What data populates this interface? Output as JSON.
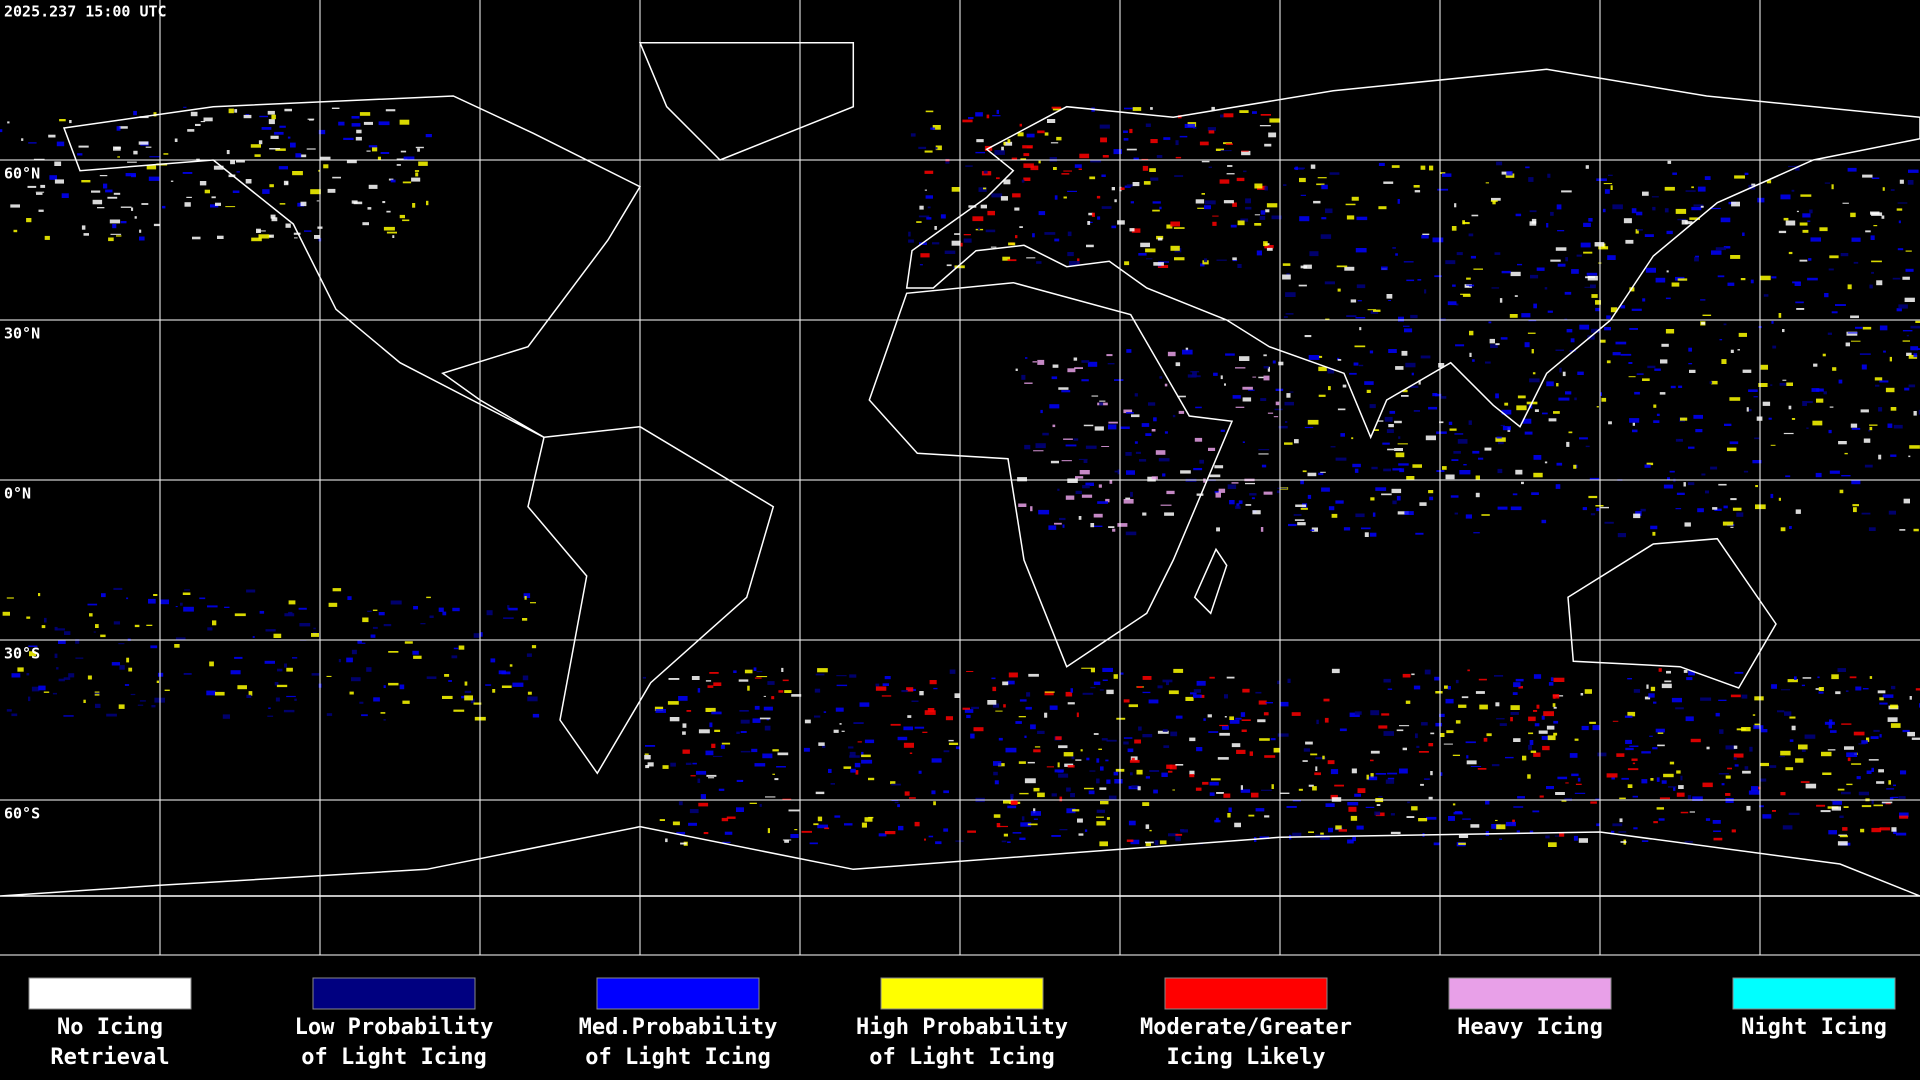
{
  "header": {
    "timestamp": "2025.237 15:00 UTC"
  },
  "latitude_labels": [
    "60°N",
    "30°N",
    "0°N",
    "30°S",
    "60°S"
  ],
  "legend": {
    "items": [
      {
        "lines": [
          "No Icing",
          "Retrieval"
        ],
        "color": "#ffffff"
      },
      {
        "lines": [
          "Low Probability",
          "of Light Icing"
        ],
        "color": "#000080"
      },
      {
        "lines": [
          "Med.Probability",
          "of Light Icing"
        ],
        "color": "#0000ff"
      },
      {
        "lines": [
          "High Probability",
          "of Light Icing"
        ],
        "color": "#ffff00"
      },
      {
        "lines": [
          "Moderate/Greater",
          "Icing Likely"
        ],
        "color": "#ff0000"
      },
      {
        "lines": [
          "Heavy Icing"
        ],
        "color": "#e8a0e8"
      },
      {
        "lines": [
          "Night Icing"
        ],
        "color": "#00ffff"
      }
    ]
  }
}
